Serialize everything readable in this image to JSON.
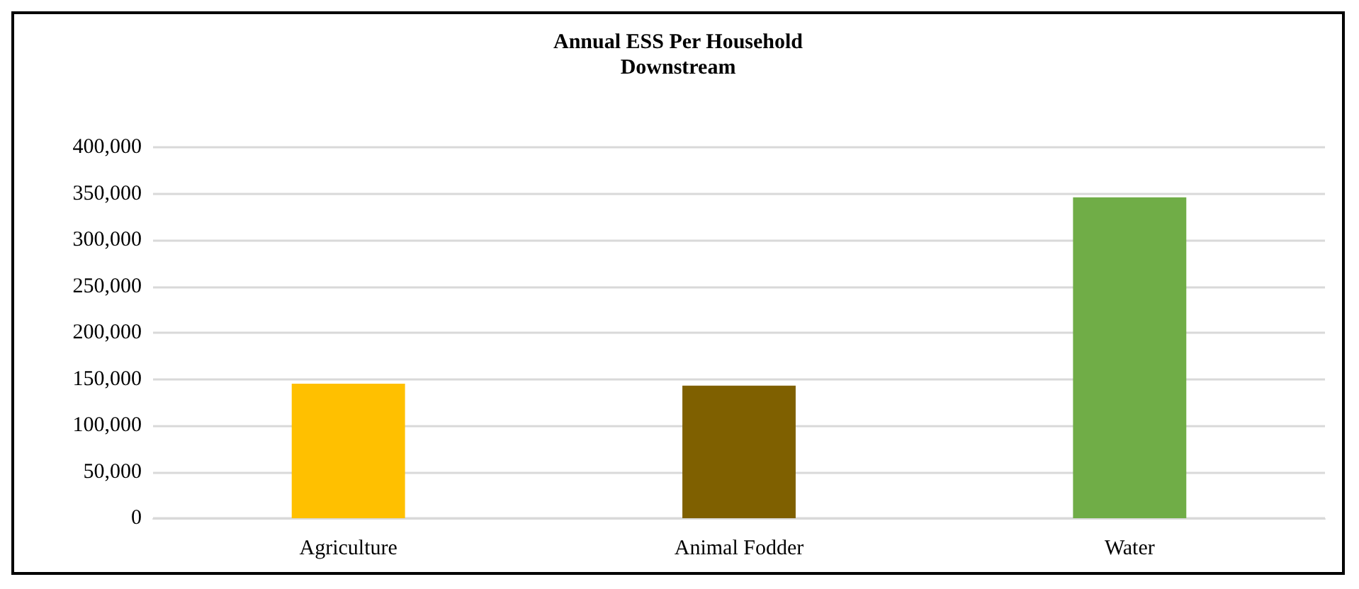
{
  "chart_data": {
    "type": "bar",
    "title": "Annual ESS Per Household\nDownstream",
    "categories": [
      "Agriculture",
      "Animal Fodder",
      "Water"
    ],
    "values": [
      145000,
      143000,
      346000
    ],
    "colors": [
      "#ffc000",
      "#7f6000",
      "#70ad47"
    ],
    "ylim": [
      0,
      400000
    ],
    "yticks": [
      0,
      {
        "value": 50000,
        "label": "50,000"
      },
      {
        "value": 100000,
        "label": "100,000"
      },
      {
        "value": 150000,
        "label": "150,000"
      },
      {
        "value": 200000,
        "label": "200,000"
      },
      {
        "value": 250000,
        "label": "250,000"
      },
      {
        "value": 300000,
        "label": "300,000"
      },
      {
        "value": 350000,
        "label": "350,000"
      },
      {
        "value": 400000,
        "label": "400,000"
      }
    ],
    "grid": "y"
  }
}
